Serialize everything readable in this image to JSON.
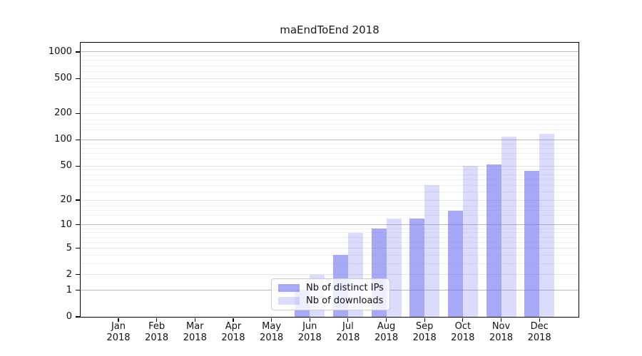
{
  "title": "maEndToEnd 2018",
  "chart_data": {
    "type": "bar",
    "title": "maEndToEnd 2018",
    "xlabel": "",
    "ylabel": "",
    "categories": [
      "Jan 2018",
      "Feb 2018",
      "Mar 2018",
      "Apr 2018",
      "May 2018",
      "Jun 2018",
      "Jul 2018",
      "Aug 2018",
      "Sep 2018",
      "Oct 2018",
      "Nov 2018",
      "Dec 2018"
    ],
    "series": [
      {
        "name": "Nb of distinct IPs",
        "color": "rgba(113,116,242,0.62)",
        "values": [
          0,
          0,
          0,
          0,
          0,
          1,
          4,
          9,
          12,
          15,
          52,
          44
        ]
      },
      {
        "name": "Nb of downloads",
        "color": "rgba(113,116,242,0.25)",
        "values": [
          0,
          0,
          0,
          0,
          0,
          2,
          8,
          12,
          30,
          50,
          108,
          117
        ]
      }
    ],
    "y_scale": "log10(value+1)",
    "ylim": [
      0,
      1250
    ],
    "y_ticks": [
      0,
      1,
      2,
      5,
      10,
      20,
      50,
      100,
      200,
      500,
      1000
    ],
    "y_emphasized_gridlines": [
      1,
      10,
      100,
      1000
    ],
    "y_minor_gridlines": [
      3,
      4,
      6,
      7,
      8,
      9,
      13,
      15,
      17,
      25,
      30,
      35,
      40,
      45,
      60,
      70,
      80,
      90,
      130,
      150,
      170,
      250,
      300,
      350,
      400,
      450,
      600,
      700,
      800,
      900
    ],
    "grid": true,
    "legend_position": "lower center inside",
    "colors": {
      "emphasized_gridline": "#b9b9b9",
      "major_gridline": "#e3e3e3",
      "minor_gridline": "#efefef",
      "axis": "#000000"
    }
  }
}
